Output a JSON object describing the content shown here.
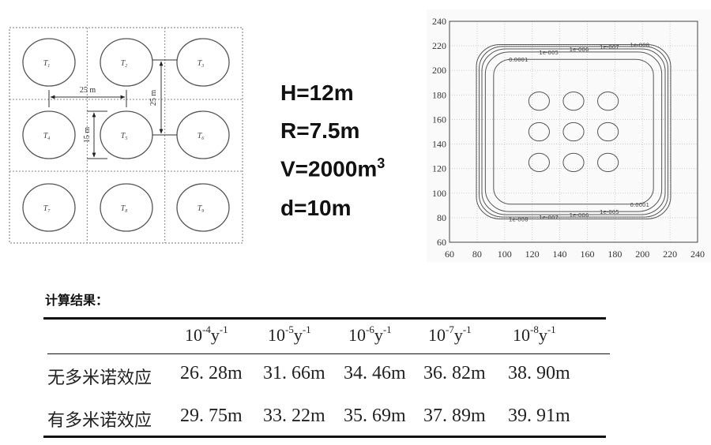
{
  "layout_diagram": {
    "tanks": [
      "T1",
      "T2",
      "T3",
      "T4",
      "T5",
      "T6",
      "T7",
      "T8",
      "T9"
    ],
    "dim_horizontal": "25 m",
    "dim_vertical_spacing": "25 m",
    "dim_diameter": "15 m"
  },
  "parameters": [
    {
      "text": "H=12m"
    },
    {
      "text": "R=7.5m"
    },
    {
      "text": "V=2000m",
      "sup": "3"
    },
    {
      "text": "d=10m"
    }
  ],
  "chart_data": {
    "type": "contour",
    "xlim": [
      60,
      240
    ],
    "ylim": [
      60,
      240
    ],
    "xticks": [
      60,
      80,
      100,
      120,
      140,
      160,
      180,
      200,
      220,
      240
    ],
    "yticks": [
      60,
      80,
      100,
      120,
      140,
      160,
      180,
      200,
      220,
      240
    ],
    "grid": true,
    "tank_centers": [
      [
        125,
        125
      ],
      [
        150,
        125
      ],
      [
        175,
        125
      ],
      [
        125,
        150
      ],
      [
        150,
        150
      ],
      [
        175,
        150
      ],
      [
        125,
        175
      ],
      [
        150,
        175
      ],
      [
        175,
        175
      ]
    ],
    "tank_radius": 7.5,
    "contours": [
      {
        "level": "0.0001",
        "xmin": 92,
        "xmax": 208,
        "ymin": 91,
        "ymax": 209
      },
      {
        "level": "1e-005",
        "xmin": 86,
        "xmax": 214,
        "ymin": 85,
        "ymax": 215
      },
      {
        "level": "1e-006",
        "xmin": 83.5,
        "xmax": 216.5,
        "ymin": 82.5,
        "ymax": 217.5
      },
      {
        "level": "1e-007",
        "xmin": 81.5,
        "xmax": 218.5,
        "ymin": 80.5,
        "ymax": 219.5
      },
      {
        "level": "1e-008",
        "xmin": 79.5,
        "xmax": 220.5,
        "ymin": 79,
        "ymax": 221
      }
    ]
  },
  "results": {
    "title": "计算结果：",
    "columns": [
      {
        "base": "10",
        "exp": "-4",
        "unit": "y",
        "unit_exp": "-1"
      },
      {
        "base": "10",
        "exp": "-5",
        "unit": "y",
        "unit_exp": "-1"
      },
      {
        "base": "10",
        "exp": "-6",
        "unit": "y",
        "unit_exp": "-1"
      },
      {
        "base": "10",
        "exp": "-7",
        "unit": "y",
        "unit_exp": "-1"
      },
      {
        "base": "10",
        "exp": "-8",
        "unit": "y",
        "unit_exp": "-1"
      }
    ],
    "rows": [
      {
        "label": "无多米诺效应",
        "values": [
          "26. 28m",
          "31. 66m",
          "34. 46m",
          "36. 82m",
          "38. 90m"
        ]
      },
      {
        "label": "有多米诺效应",
        "values": [
          "29. 75m",
          "33. 22m",
          "35. 69m",
          "37. 89m",
          "39. 91m"
        ]
      }
    ]
  }
}
